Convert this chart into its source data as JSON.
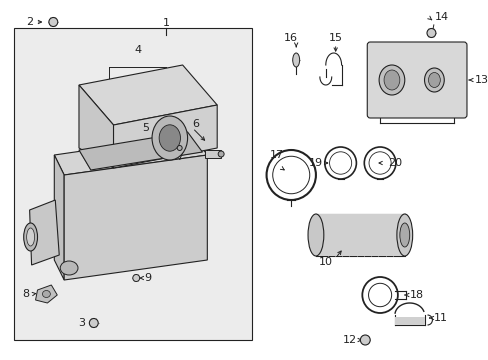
{
  "bg_color": "#ffffff",
  "box_color": "#e8e8e8",
  "line_color": "#222222",
  "fig_w": 4.89,
  "fig_h": 3.6,
  "dpi": 100
}
